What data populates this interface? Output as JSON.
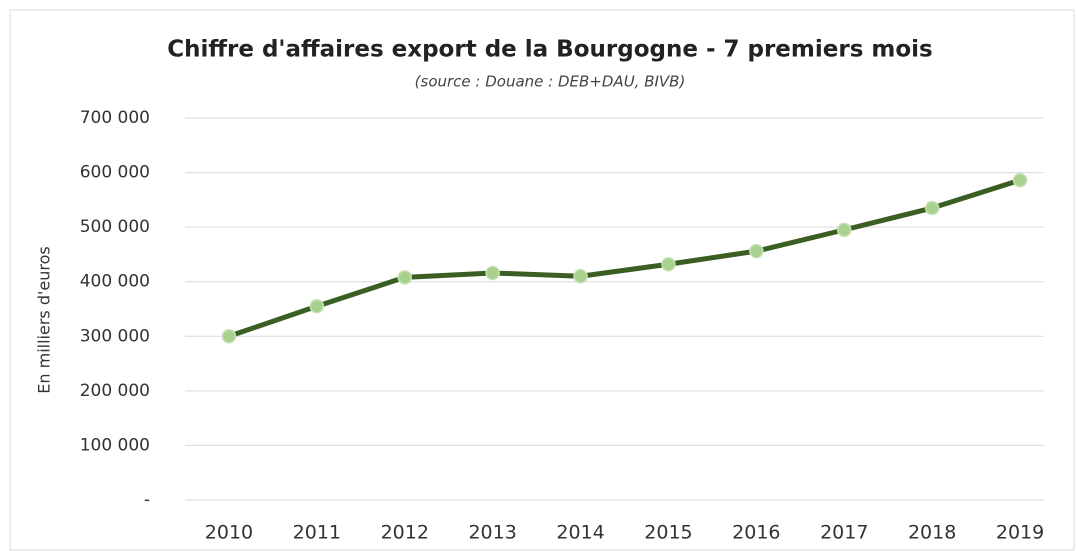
{
  "chart_data": {
    "type": "line",
    "title": "Chiffre d'affaires export de la Bourgogne - 7 premiers mois",
    "subtitle": "(source : Douane : DEB+DAU, BIVB)",
    "y_label": "En milliers d'euros",
    "categories": [
      "2010",
      "2011",
      "2012",
      "2013",
      "2014",
      "2015",
      "2016",
      "2017",
      "2018",
      "2019"
    ],
    "series": [
      {
        "name": "Chiffre d'affaires export",
        "color": "#3b5e23",
        "marker_color": "#a9d18e",
        "values": [
          300000,
          355000,
          408000,
          416000,
          410000,
          432000,
          456000,
          495000,
          535000,
          586000
        ]
      }
    ],
    "ylim": [
      0,
      700000
    ],
    "yticks": [
      {
        "value": 0,
        "label": "-"
      },
      {
        "value": 100000,
        "label": "100 000"
      },
      {
        "value": 200000,
        "label": "200 000"
      },
      {
        "value": 300000,
        "label": "300 000"
      },
      {
        "value": 400000,
        "label": "400 000"
      },
      {
        "value": 500000,
        "label": "500 000"
      },
      {
        "value": 600000,
        "label": "600 000"
      },
      {
        "value": 700000,
        "label": "700 000"
      }
    ],
    "grid": true
  }
}
